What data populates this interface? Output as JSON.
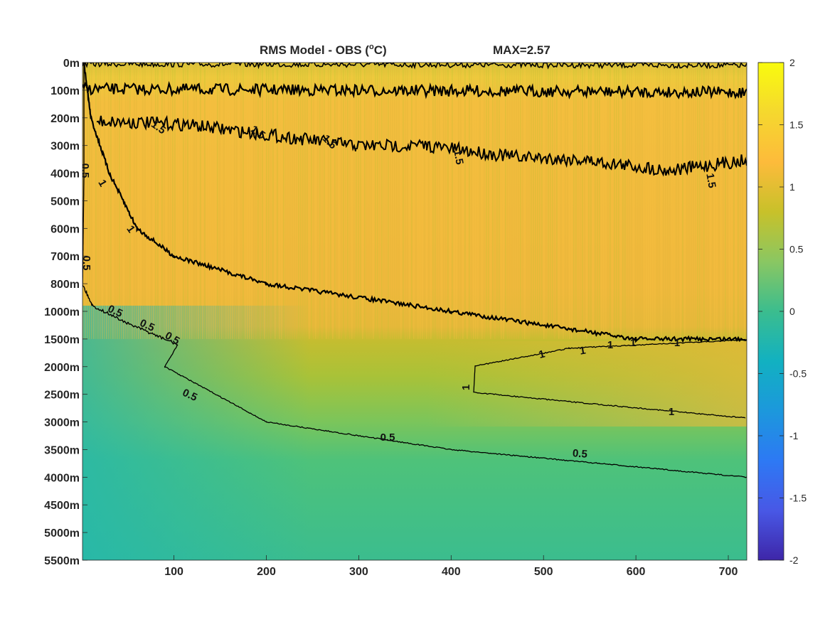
{
  "chart_data": {
    "type": "heatmap",
    "title": "RMS Model - OBS (",
    "title_sup": "o",
    "title_unit": "C)",
    "max_label": "MAX=2.57",
    "xlabel": "",
    "ylabel": "",
    "xlim": [
      1,
      720
    ],
    "x_ticks": [
      100,
      200,
      300,
      400,
      500,
      600,
      700
    ],
    "x_tick_labels": [
      "100",
      "200",
      "300",
      "400",
      "500",
      "600",
      "700"
    ],
    "y_tick_labels": [
      "0m",
      "100m",
      "200m",
      "300m",
      "400m",
      "500m",
      "600m",
      "700m",
      "800m",
      "1000m",
      "1500m",
      "2000m",
      "2500m",
      "3000m",
      "3500m",
      "4000m",
      "4500m",
      "5000m",
      "5500m"
    ],
    "colorbar": {
      "clim": [
        -2,
        2
      ],
      "ticks": [
        2,
        1.5,
        1,
        0.5,
        0,
        -0.5,
        -1,
        -1.5,
        -2
      ],
      "tick_labels": [
        "2",
        "1.5",
        "1",
        "0.5",
        "0",
        "-0.5",
        "-1",
        "-1.5",
        "-2"
      ],
      "colormap": "parula"
    },
    "contour_levels": [
      0.5,
      1,
      1.5
    ],
    "contour_label_texts": [
      "0.5",
      "1",
      "1.5"
    ],
    "field_description": [
      {
        "depth_range": "0m-100m",
        "rms": 1.6
      },
      {
        "depth_range": "100m-800m",
        "rms": 1.5
      },
      {
        "depth_range": "1500m-2500m",
        "rms": 0.9
      },
      {
        "depth_range": "3000m-5500m",
        "rms": 0.4
      }
    ],
    "contour_1_depth_vs_x": [
      [
        10,
        "200m"
      ],
      [
        30,
        "400m"
      ],
      [
        60,
        "600m"
      ],
      [
        100,
        "700m"
      ],
      [
        200,
        "800m"
      ],
      [
        400,
        "1000m"
      ],
      [
        600,
        "1500m"
      ],
      [
        720,
        "1500m"
      ]
    ],
    "contour_05_depth_vs_x": [
      [
        90,
        "2000m"
      ],
      [
        200,
        "3000m"
      ],
      [
        400,
        "3500m"
      ],
      [
        720,
        "4000m"
      ]
    ]
  }
}
